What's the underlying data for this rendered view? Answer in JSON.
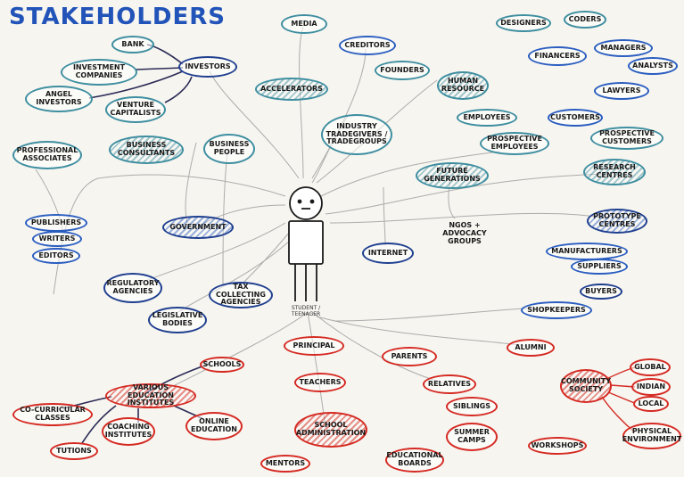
{
  "title": "STAKEHOLDERS",
  "center": {
    "label": "STUDENT /\nTEENAGER"
  },
  "colors": {
    "teal": "#3e8ea0",
    "blue": "#2a5dc0",
    "navy": "#1f3f8f",
    "red": "#d52a22",
    "title": "#2153b8"
  },
  "nodes": {
    "bank": "BANK",
    "investors": "INVESTORS",
    "investment_companies": "INVESTMENT\nCOMPANIES",
    "angel_investors": "ANGEL\nINVESTORS",
    "venture_capitalists": "VENTURE\nCAPITALISTS",
    "media": "MEDIA",
    "creditors": "CREDITORS",
    "founders": "FOUNDERS",
    "accelerators": "ACCELERATORS",
    "human_resource": "HUMAN\nRESOURCE",
    "designers": "DESIGNERS",
    "coders": "CODERS",
    "financers": "FINANCERS",
    "managers": "MANAGERS",
    "analysts": "ANALYSTS",
    "lawyers": "LAWYERS",
    "employees": "EMPLOYEES",
    "customers": "CUSTOMERS",
    "prospective_employees": "PROSPECTIVE\nEMPLOYEES",
    "prospective_customers": "PROSPECTIVE\nCUSTOMERS",
    "industry": "INDUSTRY\nTRADEGIVERS /\nTRADEGROUPS",
    "professional_associates": "PROFESSIONAL\nASSOCIATES",
    "business_consultants": "BUSINESS\nCONSULTANTS",
    "business_people": "BUSINESS\nPEOPLE",
    "future_generations": "FUTURE\nGENERATIONS",
    "research_centres": "RESEARCH\nCENTRES",
    "publishers": "PUBLISHERS",
    "writers": "WRITERS",
    "editors": "EDITORS",
    "government": "GOVERNMENT",
    "ngos": "NGOs +\nADVOCACY\nGROUPS",
    "prototype_centres": "PROTOTYPE\nCENTRES",
    "internet": "INTERNET",
    "manufacturers": "MANUFACTURERS",
    "suppliers": "SUPPLIERS",
    "regulatory_agencies": "REGULATORY\nAGENCIES",
    "tax_agencies": "TAX COLLECTING\nAGENCIES",
    "buyers": "BUYERS",
    "legislative_bodies": "LEGISLATIVE\nBODIES",
    "shopkeepers": "SHOPKEEPERS",
    "principal": "PRINCIPAL",
    "parents": "PARENTS",
    "alumni": "ALUMNI",
    "schools": "SCHOOLS",
    "teachers": "TEACHERS",
    "relatives": "RELATIVES",
    "global": "GLOBAL",
    "various_education": "VARIOUS EDUCATION\nINSTITUTES",
    "community_society": "COMMUNITY\nSOCIETY",
    "indian": "INDIAN",
    "co_curricular": "CO-CURRICULAR\nCLASSES",
    "siblings": "SIBLINGS",
    "local": "LOCAL",
    "coaching_institutes": "COACHING\nINSTITUTES",
    "online_education": "ONLINE\nEDUCATION",
    "school_administration": "SCHOOL\nADMINISTRATION",
    "summer_camps": "SUMMER\nCAMPS",
    "physical_environment": "PHYSICAL\nENVIRONMENT",
    "workshops": "WORKSHOPS",
    "tutions": "TUTIONS",
    "mentors": "MENTORS",
    "educational_boards": "EDUCATIONAL\nBOARDS"
  }
}
